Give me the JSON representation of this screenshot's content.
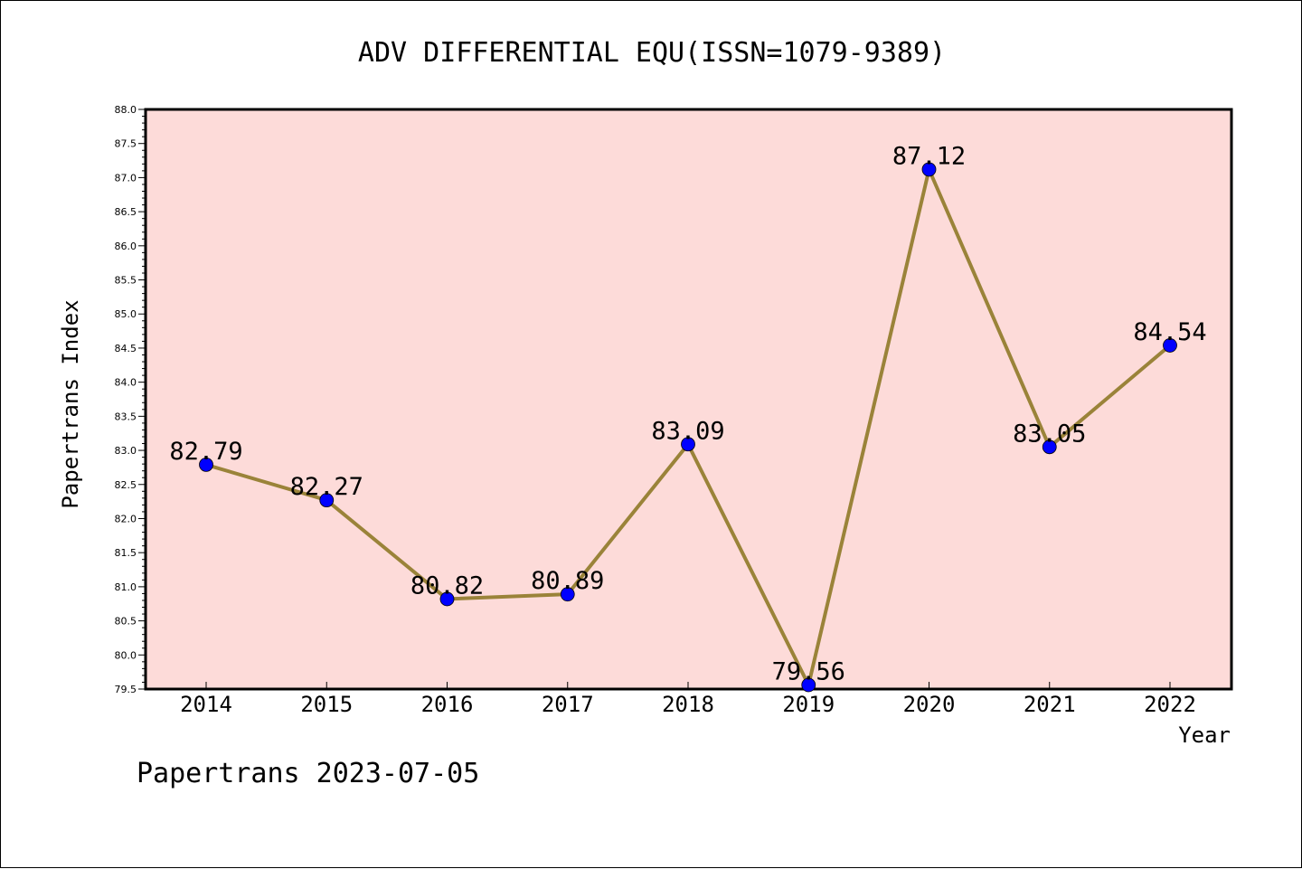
{
  "chart_data": {
    "type": "line",
    "title": "ADV DIFFERENTIAL EQU(ISSN=1079-9389)",
    "xlabel": "Year",
    "ylabel": "Papertrans Index",
    "categories": [
      "2014",
      "2015",
      "2016",
      "2017",
      "2018",
      "2019",
      "2020",
      "2021",
      "2022"
    ],
    "series": [
      {
        "values": [
          82.79,
          82.27,
          80.82,
          80.89,
          83.09,
          79.56,
          87.12,
          83.05,
          84.54
        ],
        "data_labels": [
          "82.79",
          "82.27",
          "80.82",
          "80.89",
          "83.09",
          "79.56",
          "87.12",
          "83.05",
          "84.54"
        ]
      }
    ],
    "ylim": [
      79.5,
      88.0
    ],
    "yticks": [
      "79.5",
      "80.0",
      "80.5",
      "81.0",
      "81.5",
      "82.0",
      "82.5",
      "83.0",
      "83.5",
      "84.0",
      "84.5",
      "85.0",
      "85.5",
      "86.0",
      "86.5",
      "87.0",
      "87.5",
      "88.0"
    ],
    "grid": false,
    "colors": {
      "plot_background": "#fddbd9",
      "line": "#9a8339",
      "marker": "#0000ff"
    }
  },
  "footer": {
    "text": "Papertrans 2023-07-05"
  }
}
